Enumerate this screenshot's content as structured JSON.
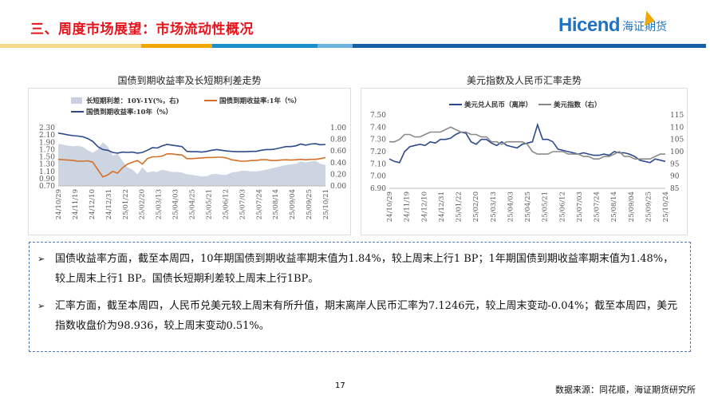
{
  "header": {
    "title": "三、周度市场展望：市场流动性概况",
    "logo_en": "Hicend",
    "logo_cn": "海证期货",
    "bar_colors": [
      "#f7d98c",
      "#f0a800",
      "#1a8fc8",
      "#6fb4e0",
      "#1460a2"
    ]
  },
  "chart_data": [
    {
      "type": "line",
      "title": "国债到期收益率及长短期利差走势",
      "x_ticks": [
        "24/10/29",
        "24/11/19",
        "24/12/10",
        "24/12/31",
        "25/01/22",
        "25/02/20",
        "25/03/13",
        "25/04/03",
        "25/04/25",
        "25/05/21",
        "25/06/12",
        "25/07/03",
        "25/07/24",
        "25/08/14",
        "25/09/04",
        "25/09/25",
        "25/10/21"
      ],
      "y_left": {
        "range": [
          0.7,
          2.3
        ],
        "ticks": [
          "2.30",
          "2.10",
          "1.90",
          "1.70",
          "1.50",
          "1.30",
          "1.10",
          "0.90",
          "0.70"
        ]
      },
      "y_right": {
        "range": [
          0,
          1.0
        ],
        "ticks": [
          "1.00",
          "0.80",
          "0.60",
          "0.40",
          "0.20",
          "0.00"
        ]
      },
      "series": [
        {
          "name": "长短期利差：10Y-1Y(%，右)",
          "kind": "area",
          "axis": "right",
          "color": "#c9d0df",
          "values": [
            0.72,
            0.71,
            0.69,
            0.68,
            0.69,
            0.67,
            0.61,
            0.57,
            0.63,
            0.75,
            0.68,
            0.52,
            0.55,
            0.43,
            0.32,
            0.28,
            0.2,
            0.32,
            0.23,
            0.25,
            0.24,
            0.28,
            0.26,
            0.24,
            0.24,
            0.23,
            0.2,
            0.19,
            0.18,
            0.16,
            0.17,
            0.2,
            0.21,
            0.19,
            0.19,
            0.23,
            0.24,
            0.26,
            0.26,
            0.25,
            0.25,
            0.26,
            0.28,
            0.3,
            0.32,
            0.34,
            0.36,
            0.37,
            0.38,
            0.42,
            0.4,
            0.42,
            0.43,
            0.38,
            0.36
          ]
        },
        {
          "name": "国债到期收益率:1年（%）",
          "kind": "line",
          "axis": "left",
          "color": "#d4702a",
          "values": [
            1.43,
            1.42,
            1.41,
            1.4,
            1.38,
            1.38,
            1.39,
            1.35,
            1.15,
            0.95,
            1.0,
            1.1,
            1.05,
            1.2,
            1.3,
            1.35,
            1.4,
            1.3,
            1.45,
            1.5,
            1.5,
            1.52,
            1.58,
            1.58,
            1.56,
            1.55,
            1.45,
            1.45,
            1.46,
            1.47,
            1.48,
            1.48,
            1.49,
            1.49,
            1.47,
            1.42,
            1.4,
            1.38,
            1.38,
            1.4,
            1.4,
            1.42,
            1.42,
            1.4,
            1.4,
            1.41,
            1.42,
            1.41,
            1.42,
            1.43,
            1.42,
            1.43,
            1.43,
            1.45,
            1.48
          ]
        },
        {
          "name": "国债到期收益率:10年（%）",
          "kind": "line",
          "axis": "left",
          "color": "#2c4a8c",
          "values": [
            2.15,
            2.13,
            2.1,
            2.08,
            2.07,
            2.05,
            2.0,
            1.92,
            1.78,
            1.7,
            1.68,
            1.62,
            1.6,
            1.63,
            1.62,
            1.63,
            1.6,
            1.62,
            1.68,
            1.75,
            1.74,
            1.8,
            1.84,
            1.82,
            1.8,
            1.78,
            1.65,
            1.64,
            1.64,
            1.63,
            1.65,
            1.68,
            1.7,
            1.68,
            1.66,
            1.65,
            1.64,
            1.64,
            1.64,
            1.65,
            1.65,
            1.68,
            1.7,
            1.7,
            1.72,
            1.75,
            1.78,
            1.78,
            1.8,
            1.85,
            1.82,
            1.85,
            1.86,
            1.83,
            1.84
          ]
        }
      ]
    },
    {
      "type": "line",
      "title": "美元指数及人民币汇率走势",
      "x_ticks": [
        "24/10/29",
        "24/11/19",
        "24/12/10",
        "24/12/31",
        "25/01/22",
        "25/02/20",
        "25/03/13",
        "25/04/03",
        "25/04/25",
        "25/05/21",
        "25/06/12",
        "25/07/03",
        "25/07/24",
        "25/08/14",
        "25/09/04",
        "25/09/25",
        "25/10/24"
      ],
      "y_left": {
        "range": [
          6.9,
          7.5
        ],
        "ticks": [
          "7.50",
          "7.40",
          "7.30",
          "7.20",
          "7.10",
          "7.00",
          "6.90"
        ]
      },
      "y_right": {
        "range": [
          85,
          115
        ],
        "ticks": [
          "115",
          "110",
          "105",
          "100",
          "95",
          "90",
          "85"
        ]
      },
      "series": [
        {
          "name": "美元兑人民币（离岸）",
          "kind": "line",
          "axis": "left",
          "color": "#2c4a8c",
          "values": [
            7.14,
            7.12,
            7.11,
            7.2,
            7.24,
            7.25,
            7.26,
            7.25,
            7.28,
            7.27,
            7.3,
            7.3,
            7.31,
            7.34,
            7.36,
            7.35,
            7.28,
            7.26,
            7.3,
            7.3,
            7.27,
            7.25,
            7.28,
            7.25,
            7.24,
            7.23,
            7.26,
            7.27,
            7.28,
            7.42,
            7.3,
            7.3,
            7.28,
            7.22,
            7.21,
            7.2,
            7.19,
            7.18,
            7.19,
            7.18,
            7.17,
            7.17,
            7.18,
            7.17,
            7.2,
            7.19,
            7.19,
            7.18,
            7.16,
            7.13,
            7.12,
            7.11,
            7.14,
            7.13,
            7.12
          ]
        },
        {
          "name": "美元指数（右）",
          "kind": "line",
          "axis": "right",
          "color": "#8a8a8a",
          "values": [
            104,
            104,
            105,
            107,
            107,
            106,
            106,
            107,
            108,
            108,
            108,
            109,
            110,
            109,
            108,
            108,
            107,
            107,
            106,
            106,
            104,
            104,
            103,
            104,
            104,
            104,
            104,
            103,
            100,
            99,
            99,
            99,
            100,
            100,
            100,
            99,
            99,
            99,
            98,
            98,
            97,
            97,
            98,
            98,
            99,
            100,
            98,
            98,
            97,
            97,
            97,
            97,
            98,
            99,
            99
          ]
        }
      ]
    }
  ],
  "notes": [
    "国债收益率方面，截至本周四，10年期国债到期收益率期末值为1.84%，较上周末上行1 BP；1年期国债到期收益率期末值为1.48%，较上周末上行1 BP。国债长短期利差较上周末上行1BP。",
    "汇率方面，截至本周四，人民币兑美元较上周末有所升值，期末离岸人民币汇率为7.1246元，较上周末变动-0.04%；截至本周四，美元指数收盘价为98.936，较上周末变动0.51%。"
  ],
  "footer": {
    "page": "17",
    "source": "数据来源：同花顺，海证期货研究所"
  }
}
